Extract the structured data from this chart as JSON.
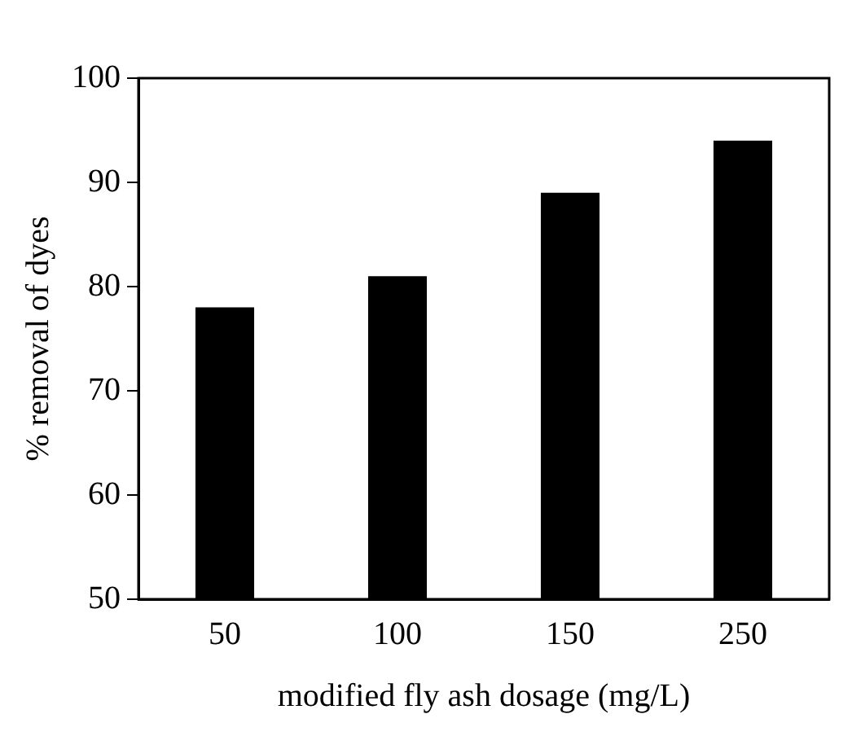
{
  "chart_data": {
    "type": "bar",
    "xlabel": "modified fly ash dosage (mg/L)",
    "ylabel": "% removal of dyes",
    "categories": [
      "50",
      "100",
      "150",
      "250"
    ],
    "values": [
      78,
      81,
      89,
      94
    ],
    "color": "#000000",
    "ylim": [
      50,
      100
    ],
    "yticks": [
      50,
      60,
      70,
      80,
      90,
      100
    ],
    "grid": false,
    "legend": false
  }
}
